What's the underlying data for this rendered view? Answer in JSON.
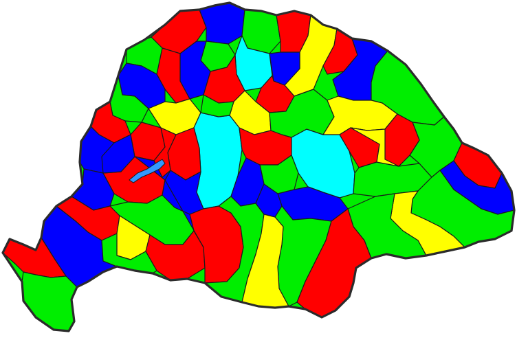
{
  "map": {
    "palette": {
      "red": "#ff0000",
      "blue": "#0000ff",
      "green": "#00ee00",
      "yellow": "#ffff00",
      "cyan": "#00ffff",
      "lake": "#3399ff"
    },
    "regions": [
      {
        "name": "region-01",
        "color": "red"
      },
      {
        "name": "region-02",
        "color": "blue"
      },
      {
        "name": "region-03",
        "color": "green"
      },
      {
        "name": "region-04",
        "color": "red"
      },
      {
        "name": "region-05",
        "color": "yellow"
      },
      {
        "name": "region-06",
        "color": "red"
      },
      {
        "name": "region-07",
        "color": "blue"
      },
      {
        "name": "region-08",
        "color": "green"
      },
      {
        "name": "region-09",
        "color": "cyan"
      },
      {
        "name": "region-10",
        "color": "blue"
      },
      {
        "name": "region-11",
        "color": "red"
      },
      {
        "name": "region-12",
        "color": "green"
      },
      {
        "name": "region-13",
        "color": "red"
      },
      {
        "name": "region-14",
        "color": "blue"
      },
      {
        "name": "region-15",
        "color": "red"
      },
      {
        "name": "region-16",
        "color": "yellow"
      },
      {
        "name": "region-17",
        "color": "yellow"
      },
      {
        "name": "region-18",
        "color": "green"
      },
      {
        "name": "region-19",
        "color": "blue"
      },
      {
        "name": "region-20",
        "color": "green"
      },
      {
        "name": "region-21",
        "color": "red"
      },
      {
        "name": "region-22",
        "color": "blue"
      },
      {
        "name": "region-23",
        "color": "cyan"
      },
      {
        "name": "region-24",
        "color": "red"
      },
      {
        "name": "region-25",
        "color": "yellow"
      },
      {
        "name": "region-26",
        "color": "blue"
      },
      {
        "name": "region-27",
        "color": "cyan"
      },
      {
        "name": "region-28",
        "color": "red"
      },
      {
        "name": "region-29",
        "color": "green"
      },
      {
        "name": "region-30",
        "color": "blue"
      },
      {
        "name": "region-31",
        "color": "green"
      },
      {
        "name": "region-32",
        "color": "yellow"
      },
      {
        "name": "region-33",
        "color": "red"
      },
      {
        "name": "region-34",
        "color": "blue"
      },
      {
        "name": "region-35",
        "color": "green"
      },
      {
        "name": "region-36",
        "color": "red"
      },
      {
        "name": "region-37",
        "color": "yellow"
      },
      {
        "name": "region-38",
        "color": "green"
      },
      {
        "name": "region-39",
        "color": "red"
      },
      {
        "name": "region-40",
        "color": "blue"
      },
      {
        "name": "region-41",
        "color": "green"
      },
      {
        "name": "region-42",
        "color": "yellow"
      },
      {
        "name": "region-43",
        "color": "green"
      },
      {
        "name": "region-44",
        "color": "red"
      },
      {
        "name": "region-45",
        "color": "blue"
      },
      {
        "name": "region-46",
        "color": "red"
      },
      {
        "name": "region-47",
        "color": "green"
      },
      {
        "name": "region-48",
        "color": "blue"
      },
      {
        "name": "region-49",
        "color": "yellow"
      },
      {
        "name": "region-50",
        "color": "red"
      },
      {
        "name": "region-51",
        "color": "green"
      },
      {
        "name": "region-52",
        "color": "red"
      },
      {
        "name": "region-53",
        "color": "green"
      },
      {
        "name": "region-54",
        "color": "blue"
      },
      {
        "name": "region-55",
        "color": "green"
      },
      {
        "name": "region-56",
        "color": "red"
      },
      {
        "name": "region-57",
        "color": "red"
      },
      {
        "name": "region-58",
        "color": "green"
      },
      {
        "name": "region-59",
        "color": "red"
      },
      {
        "name": "region-60",
        "color": "yellow"
      },
      {
        "name": "region-61",
        "color": "blue"
      },
      {
        "name": "region-62",
        "color": "red"
      },
      {
        "name": "region-63",
        "color": "green"
      },
      {
        "name": "region-64",
        "color": "blue"
      }
    ]
  }
}
